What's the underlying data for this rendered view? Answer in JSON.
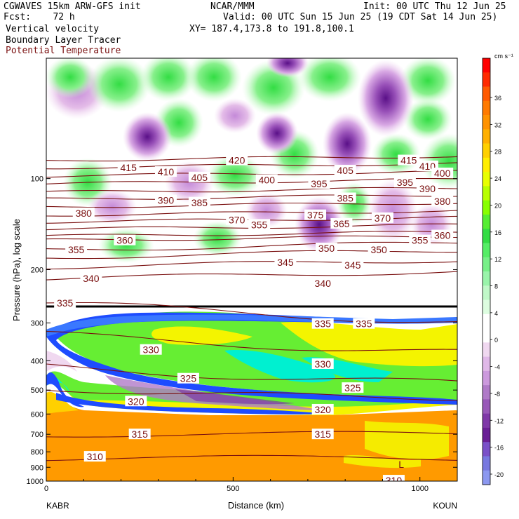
{
  "header": {
    "line1_left": "CGWAVES 15km ARW-GFS init",
    "line1_center": "NCAR/MMM",
    "line1_right": "Init: 00 UTC Thu 12 Jun 25",
    "line2_left": "Fcst:    72 h",
    "line2_right": "Valid: 00 UTC Sun 15 Jun 25 (19 CDT Sat 14 Jun 25)",
    "line3_left": "Vertical velocity",
    "line3_right": "XY= 187.4,173.8 to 191.8,100.1",
    "line4_left": "Boundary Layer Tracer",
    "line5_left": "Potential Temperature"
  },
  "colors": {
    "theta_contour": "#7a1010",
    "theta_label": "#7a1010",
    "tracer_blue": "#1e4cff",
    "tracer_cyan": "#00f0d0",
    "tracer_green": "#66ee33",
    "tracer_yellow": "#f4f400",
    "tracer_orange": "#ff9a00"
  },
  "chart_data": {
    "type": "heatmap",
    "title": "Vertical velocity / Boundary Layer Tracer / Potential Temperature",
    "xlabel": "Distance (km)",
    "ylabel": "Pressure (hPa), log scale",
    "xlim": [
      0,
      1100
    ],
    "ylim": [
      1000,
      40
    ],
    "y_scale": "log",
    "x_ticks": [
      0,
      500,
      1000
    ],
    "y_ticks": [
      100,
      200,
      300,
      400,
      500,
      600,
      700,
      800,
      900,
      1000
    ],
    "x_endpoints": {
      "left": "KABR",
      "right": "KOUN"
    },
    "colorbar": {
      "units": "cm s⁻¹",
      "ticks": [
        36,
        32,
        28,
        24,
        20,
        16,
        12,
        8,
        4,
        0,
        -4,
        -8,
        -12,
        -16,
        -20
      ],
      "colors": [
        "#ff0000",
        "#ff2a00",
        "#ff5a00",
        "#ff7a00",
        "#ff9200",
        "#ffb000",
        "#ffd000",
        "#ffee00",
        "#e8ff00",
        "#b8ff00",
        "#88ff00",
        "#55ee33",
        "#33dd44",
        "#55ee66",
        "#77f088",
        "#99f4aa",
        "#c0f8c8",
        "#ddfde0",
        "#ffffff",
        "#ffffff",
        "#f0d8f0",
        "#e0b8e8",
        "#cc99dd",
        "#b07ac8",
        "#9858b8",
        "#7f38a8",
        "#6a1f96",
        "#7a50c8",
        "#7878e0",
        "#8c98f0"
      ]
    },
    "theta_contours": [
      {
        "label": "415",
        "p_at_left": 87
      },
      {
        "label": "410",
        "p_at_left": 92
      },
      {
        "label": "405",
        "p_at_left": 98
      },
      {
        "label": "400",
        "p_at_left": 104
      },
      {
        "label": "395",
        "p_at_left": 111
      },
      {
        "label": "390",
        "p_at_left": 117
      },
      {
        "label": "385",
        "p_at_left": 124
      },
      {
        "label": "380",
        "p_at_left": 132
      },
      {
        "label": "375",
        "p_at_left": 139
      },
      {
        "label": "370",
        "p_at_left": 147
      },
      {
        "label": "365",
        "p_at_left": 155
      },
      {
        "label": "360",
        "p_at_left": 160
      },
      {
        "label": "355",
        "p_at_left": 172
      },
      {
        "label": "350",
        "p_at_left": 182
      },
      {
        "label": "345",
        "p_at_left": 196
      },
      {
        "label": "340",
        "p_at_left": 214
      },
      {
        "label": "335",
        "p_at_left": 260
      },
      {
        "label": "330",
        "p_at_left": 330
      },
      {
        "label": "325",
        "p_at_left": 420
      },
      {
        "label": "320",
        "p_at_left": 500
      },
      {
        "label": "315",
        "p_at_left": 700
      },
      {
        "label": "310",
        "p_at_left": 840
      }
    ],
    "theta_labels": [
      {
        "text": "420",
        "x": 510,
        "p": 87
      },
      {
        "text": "415",
        "x": 970,
        "p": 87
      },
      {
        "text": "415",
        "x": 220,
        "p": 92
      },
      {
        "text": "410",
        "x": 1020,
        "p": 91
      },
      {
        "text": "410",
        "x": 320,
        "p": 95
      },
      {
        "text": "405",
        "x": 800,
        "p": 94
      },
      {
        "text": "405",
        "x": 410,
        "p": 99
      },
      {
        "text": "400",
        "x": 590,
        "p": 101
      },
      {
        "text": "400",
        "x": 1060,
        "p": 96
      },
      {
        "text": "395",
        "x": 730,
        "p": 104
      },
      {
        "text": "395",
        "x": 960,
        "p": 103
      },
      {
        "text": "390",
        "x": 320,
        "p": 118
      },
      {
        "text": "390",
        "x": 1020,
        "p": 108
      },
      {
        "text": "385",
        "x": 410,
        "p": 120
      },
      {
        "text": "385",
        "x": 800,
        "p": 116
      },
      {
        "text": "380",
        "x": 100,
        "p": 130
      },
      {
        "text": "380",
        "x": 1060,
        "p": 119
      },
      {
        "text": "375",
        "x": 720,
        "p": 132
      },
      {
        "text": "370",
        "x": 510,
        "p": 137
      },
      {
        "text": "370",
        "x": 900,
        "p": 135
      },
      {
        "text": "365",
        "x": 790,
        "p": 141
      },
      {
        "text": "355",
        "x": 570,
        "p": 142
      },
      {
        "text": "360",
        "x": 210,
        "p": 160
      },
      {
        "text": "360",
        "x": 1060,
        "p": 154
      },
      {
        "text": "355",
        "x": 80,
        "p": 172
      },
      {
        "text": "355",
        "x": 1000,
        "p": 160
      },
      {
        "text": "350",
        "x": 750,
        "p": 170
      },
      {
        "text": "350",
        "x": 890,
        "p": 172
      },
      {
        "text": "345",
        "x": 640,
        "p": 189
      },
      {
        "text": "345",
        "x": 820,
        "p": 193
      },
      {
        "text": "340",
        "x": 120,
        "p": 214
      },
      {
        "text": "340",
        "x": 740,
        "p": 222
      },
      {
        "text": "335",
        "x": 50,
        "p": 258
      },
      {
        "text": "335",
        "x": 740,
        "p": 302
      },
      {
        "text": "335",
        "x": 850,
        "p": 302
      },
      {
        "text": "330",
        "x": 280,
        "p": 368
      },
      {
        "text": "330",
        "x": 740,
        "p": 410
      },
      {
        "text": "325",
        "x": 380,
        "p": 458
      },
      {
        "text": "325",
        "x": 820,
        "p": 492
      },
      {
        "text": "320",
        "x": 240,
        "p": 545
      },
      {
        "text": "320",
        "x": 740,
        "p": 580
      },
      {
        "text": "315",
        "x": 250,
        "p": 700
      },
      {
        "text": "315",
        "x": 740,
        "p": 700
      },
      {
        "text": "310",
        "x": 130,
        "p": 830
      },
      {
        "text": "310",
        "x": 930,
        "p": 995
      }
    ],
    "annotations": [
      {
        "text": "L",
        "x": 950,
        "p": 880
      }
    ]
  }
}
